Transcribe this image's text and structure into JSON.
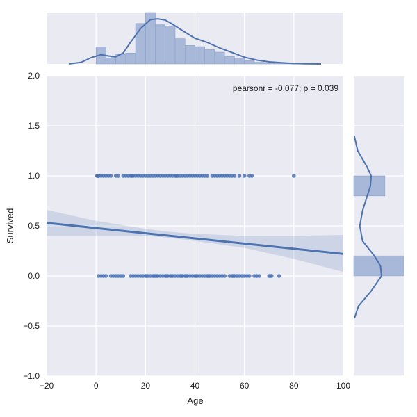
{
  "chart_data": {
    "type": "scatter",
    "title": "",
    "xlabel": "Age",
    "ylabel": "Survived",
    "xlim": [
      -20,
      100
    ],
    "ylim": [
      -1.0,
      2.0
    ],
    "xticks": [
      "−20",
      "0",
      "20",
      "40",
      "60",
      "80",
      "100"
    ],
    "xtick_values": [
      -20,
      0,
      20,
      40,
      60,
      80,
      100
    ],
    "yticks": [
      "−1.0",
      "−0.5",
      "0.0",
      "0.5",
      "1.0",
      "1.5",
      "2.0"
    ],
    "ytick_values": [
      -1.0,
      -0.5,
      0.0,
      0.5,
      1.0,
      1.5,
      2.0
    ],
    "grid": true,
    "annotation": "pearsonr = -0.077; p = 0.039",
    "colors": {
      "accent": "#4c72b0",
      "panel_bg": "#eaeaf2",
      "grid": "#ffffff",
      "hist_fill": "#a8b8d8"
    },
    "points_survived_1": [
      0.42,
      0.67,
      0.75,
      0.83,
      0.92,
      1,
      2,
      3,
      4,
      5,
      6,
      8,
      9,
      11,
      12,
      13,
      14,
      14.5,
      15,
      16,
      17,
      18,
      19,
      20,
      21,
      22,
      23,
      24,
      25,
      26,
      27,
      28,
      29,
      30,
      31,
      32,
      32.5,
      33,
      34,
      35,
      36,
      37,
      38,
      39,
      40,
      41,
      42,
      43,
      44,
      45,
      47,
      48,
      49,
      50,
      51,
      52,
      53,
      54,
      55,
      56,
      58,
      60,
      62,
      63,
      80
    ],
    "points_survived_0": [
      1,
      2,
      3,
      4,
      6,
      7,
      8,
      9,
      10,
      11,
      14,
      15,
      16,
      17,
      18,
      19,
      20,
      20.5,
      21,
      22,
      23,
      23.5,
      24,
      24.5,
      25,
      26,
      27,
      28,
      28.5,
      29,
      30,
      30.5,
      31,
      32,
      33,
      34,
      34.5,
      35,
      36,
      36.5,
      37,
      38,
      39,
      40,
      40.5,
      41,
      42,
      43,
      44,
      45,
      45.5,
      46,
      47,
      48,
      49,
      50,
      51,
      52,
      54,
      55,
      55.5,
      56,
      57,
      58,
      59,
      60,
      61,
      62,
      64,
      65,
      66,
      70,
      70.5,
      71,
      74
    ],
    "regression": {
      "x": [
        -20,
        100
      ],
      "y": [
        0.53,
        0.22
      ]
    },
    "confidence_band": {
      "x": [
        -20,
        0,
        20,
        30,
        40,
        60,
        80,
        100
      ],
      "upper": [
        0.66,
        0.55,
        0.47,
        0.44,
        0.42,
        0.4,
        0.4,
        0.41
      ],
      "lower": [
        0.4,
        0.4,
        0.4,
        0.38,
        0.35,
        0.28,
        0.17,
        0.04
      ]
    },
    "marginal_x": {
      "bins": [
        0,
        4,
        6,
        8,
        12,
        16,
        20,
        24,
        28,
        32,
        36,
        40,
        44,
        48,
        52,
        56,
        60,
        64,
        68,
        72,
        76,
        80
      ],
      "counts": [
        40,
        14,
        17,
        23,
        26,
        96,
        122,
        95,
        90,
        60,
        44,
        41,
        34,
        28,
        18,
        14,
        8,
        4,
        2,
        1,
        1
      ],
      "kde_x": [
        -11,
        -6,
        -2,
        2,
        5,
        8,
        11,
        14,
        18,
        22,
        25,
        28,
        31,
        35,
        40,
        45,
        50,
        55,
        60,
        65,
        70,
        75,
        80,
        85,
        91
      ],
      "kde_y": [
        0,
        4,
        15,
        22,
        19,
        17,
        26,
        52,
        84,
        105,
        107,
        104,
        94,
        79,
        61,
        51,
        38,
        27,
        16,
        9,
        5,
        3,
        1,
        0.3,
        0
      ]
    },
    "marginal_y": {
      "bins": [
        0.0,
        0.2,
        0.8,
        1.0
      ],
      "counts": [
        549,
        0,
        342
      ],
      "kde_y": [
        -0.42,
        -0.3,
        -0.15,
        0.0,
        0.1,
        0.2,
        0.35,
        0.5,
        0.65,
        0.8,
        0.9,
        1.0,
        1.1,
        1.25,
        1.4
      ],
      "kde_d": [
        0.05,
        0.3,
        1.1,
        1.75,
        1.68,
        1.3,
        0.55,
        0.38,
        0.55,
        0.85,
        1.05,
        1.1,
        0.8,
        0.25,
        0.03
      ]
    }
  }
}
